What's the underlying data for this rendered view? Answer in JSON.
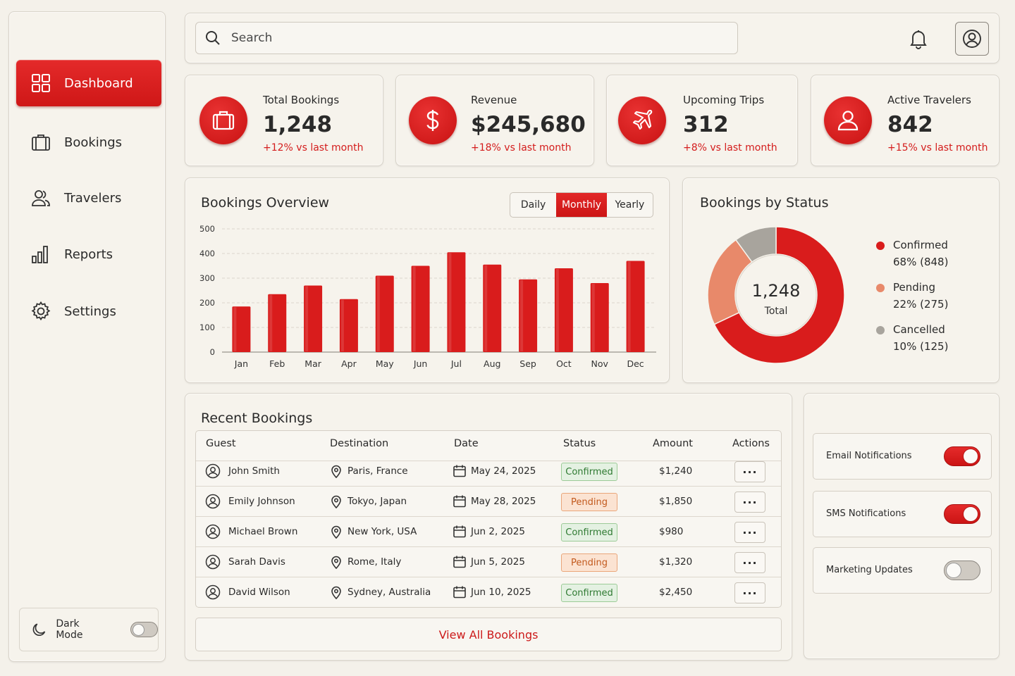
{
  "sidebar": {
    "items": [
      {
        "label": "Dashboard",
        "icon": "grid-icon",
        "active": true
      },
      {
        "label": "Bookings",
        "icon": "briefcase-icon"
      },
      {
        "label": "Travelers",
        "icon": "users-icon"
      },
      {
        "label": "Reports",
        "icon": "bar-chart-icon"
      },
      {
        "label": "Settings",
        "icon": "gear-icon"
      }
    ],
    "dark_mode": {
      "label": "Dark Mode",
      "on": false
    }
  },
  "header": {
    "search_placeholder": "Search"
  },
  "stats": [
    {
      "label": "Total Bookings",
      "value": "1,248",
      "delta": "+12% vs last month",
      "icon": "briefcase-icon"
    },
    {
      "label": "Revenue",
      "value": "$245,680",
      "delta": "+18% vs last month",
      "icon": "dollar-icon"
    },
    {
      "label": "Upcoming Trips",
      "value": "312",
      "delta": "+8% vs last month",
      "icon": "plane-icon"
    },
    {
      "label": "Active Travelers",
      "value": "842",
      "delta": "+15% vs last month",
      "icon": "user-icon"
    }
  ],
  "overview": {
    "title": "Bookings Overview",
    "tabs": [
      "Daily",
      "Monthly",
      "Yearly"
    ],
    "active_tab": "Monthly"
  },
  "chart_data": [
    {
      "type": "bar",
      "title": "Bookings Overview",
      "categories": [
        "Jan",
        "Feb",
        "Mar",
        "Apr",
        "May",
        "Jun",
        "Jul",
        "Aug",
        "Sep",
        "Oct",
        "Nov",
        "Dec"
      ],
      "values": [
        185,
        235,
        270,
        215,
        310,
        350,
        405,
        355,
        295,
        340,
        280,
        370
      ],
      "ylim": [
        0,
        500
      ],
      "yticks": [
        0,
        100,
        200,
        300,
        400,
        500
      ],
      "color": "#d91c1c",
      "grid": true
    },
    {
      "type": "pie",
      "title": "Bookings by Status",
      "center_value": "1,248",
      "center_label": "Total",
      "slices": [
        {
          "name": "Confirmed",
          "value": 848,
          "pct_label": "68% (848)",
          "color": "#d91c1c"
        },
        {
          "name": "Pending",
          "value": 275,
          "pct_label": "22% (275)",
          "color": "#e8896a"
        },
        {
          "name": "Cancelled",
          "value": 125,
          "pct_label": "10% (125)",
          "color": "#a8a49d"
        }
      ]
    }
  ],
  "recent": {
    "title": "Recent Bookings",
    "columns": [
      "Guest",
      "Destination",
      "Date",
      "Status",
      "Amount",
      "Actions"
    ],
    "rows": [
      {
        "guest": "John Smith",
        "destination": "Paris, France",
        "date": "May 24, 2025",
        "status": "Confirmed",
        "amount": "$1,240"
      },
      {
        "guest": "Emily Johnson",
        "destination": "Tokyo, Japan",
        "date": "May 28, 2025",
        "status": "Pending",
        "amount": "$1,850"
      },
      {
        "guest": "Michael Brown",
        "destination": "New York, USA",
        "date": "Jun 2, 2025",
        "status": "Confirmed",
        "amount": "$980"
      },
      {
        "guest": "Sarah Davis",
        "destination": "Rome, Italy",
        "date": "Jun 5, 2025",
        "status": "Pending",
        "amount": "$1,320"
      },
      {
        "guest": "David Wilson",
        "destination": "Sydney, Australia",
        "date": "Jun 10, 2025",
        "status": "Confirmed",
        "amount": "$2,450"
      }
    ],
    "action_label": "···",
    "view_all": "View All Bookings"
  },
  "notifications": [
    {
      "label": "Email Notifications",
      "on": true
    },
    {
      "label": "SMS Notifications",
      "on": true
    },
    {
      "label": "Marketing Updates",
      "on": false
    }
  ],
  "colors": {
    "accent": "#d91c1c",
    "background": "#f4f1ea"
  }
}
